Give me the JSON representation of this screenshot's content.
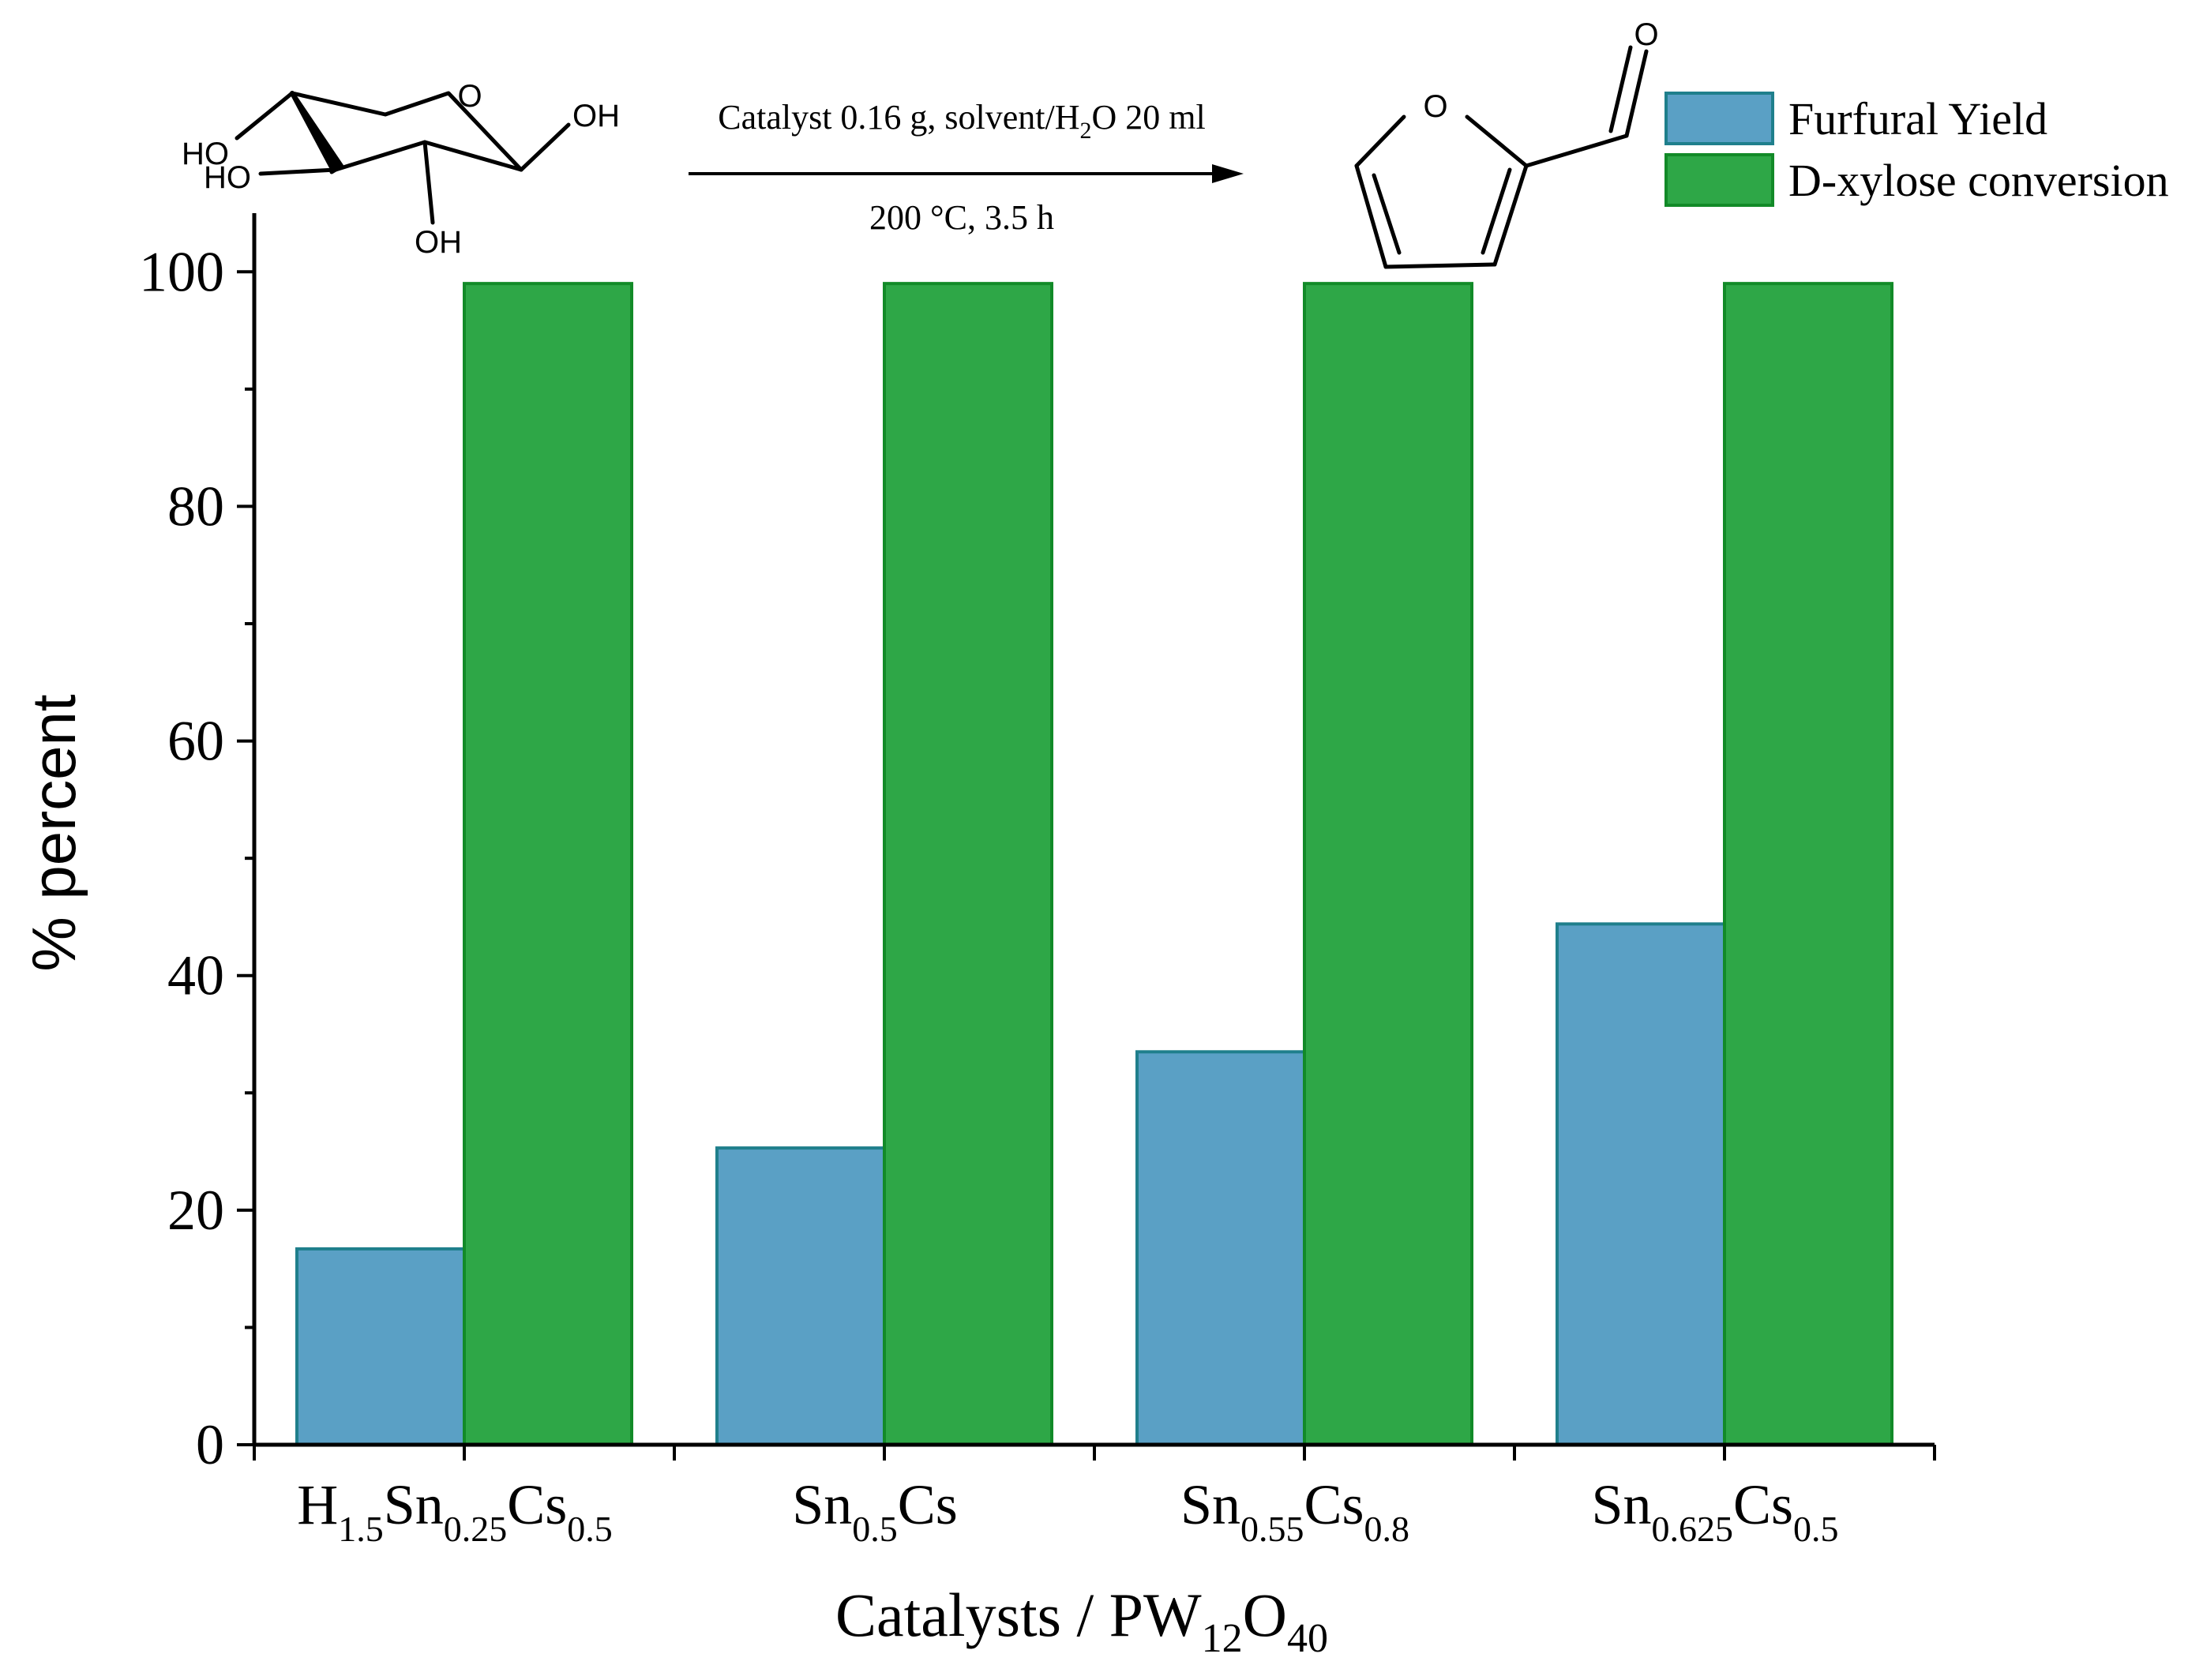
{
  "chart_data": {
    "type": "bar",
    "title": "",
    "xlabel": {
      "main": "Catalysts / PW",
      "sub1": "12",
      "mid": "O",
      "sub2": "40"
    },
    "ylabel": "% percent",
    "ylim": [
      0,
      105
    ],
    "yticks": [
      0,
      20,
      40,
      60,
      80,
      100
    ],
    "grid": false,
    "legend_position": "top-right",
    "categories": [
      {
        "parts": [
          {
            "t": "H",
            "sub": false
          },
          {
            "t": "1.5",
            "sub": true
          },
          {
            "t": "Sn",
            "sub": false
          },
          {
            "t": "0.25",
            "sub": true
          },
          {
            "t": "Cs",
            "sub": false
          },
          {
            "t": "0.5",
            "sub": true
          }
        ]
      },
      {
        "parts": [
          {
            "t": "Sn",
            "sub": false
          },
          {
            "t": "0.5",
            "sub": true
          },
          {
            "t": "Cs",
            "sub": false
          }
        ]
      },
      {
        "parts": [
          {
            "t": "Sn",
            "sub": false
          },
          {
            "t": "0.55",
            "sub": true
          },
          {
            "t": "Cs",
            "sub": false
          },
          {
            "t": "0.8",
            "sub": true
          }
        ]
      },
      {
        "parts": [
          {
            "t": "Sn",
            "sub": false
          },
          {
            "t": "0.625",
            "sub": true
          },
          {
            "t": "Cs",
            "sub": false
          },
          {
            "t": "0.5",
            "sub": true
          }
        ]
      }
    ],
    "series": [
      {
        "name": "Furfural Yield",
        "values": [
          16.7,
          25.3,
          33.5,
          44.4
        ],
        "fill": "#5aa0c5",
        "stroke": "#1f7f8c"
      },
      {
        "name": "D-xylose conversion",
        "values": [
          99,
          99,
          99,
          99
        ],
        "fill": "#2ea747",
        "stroke": "#128a28"
      }
    ]
  },
  "reaction": {
    "conditions_line1": {
      "a": "Catalyst 0.16 g, solvent/H",
      "sub": "2",
      "b": "O 20 ml"
    },
    "conditions_line2": "200 °C, 3.5 h",
    "reactant_labels": {
      "ho_top": "HO",
      "ho_left": "HO",
      "oh_right": "OH",
      "oh_bottom": "OH",
      "ring_o": "O"
    },
    "product_labels": {
      "ring_o": "O",
      "carbonyl_o": "O"
    }
  }
}
